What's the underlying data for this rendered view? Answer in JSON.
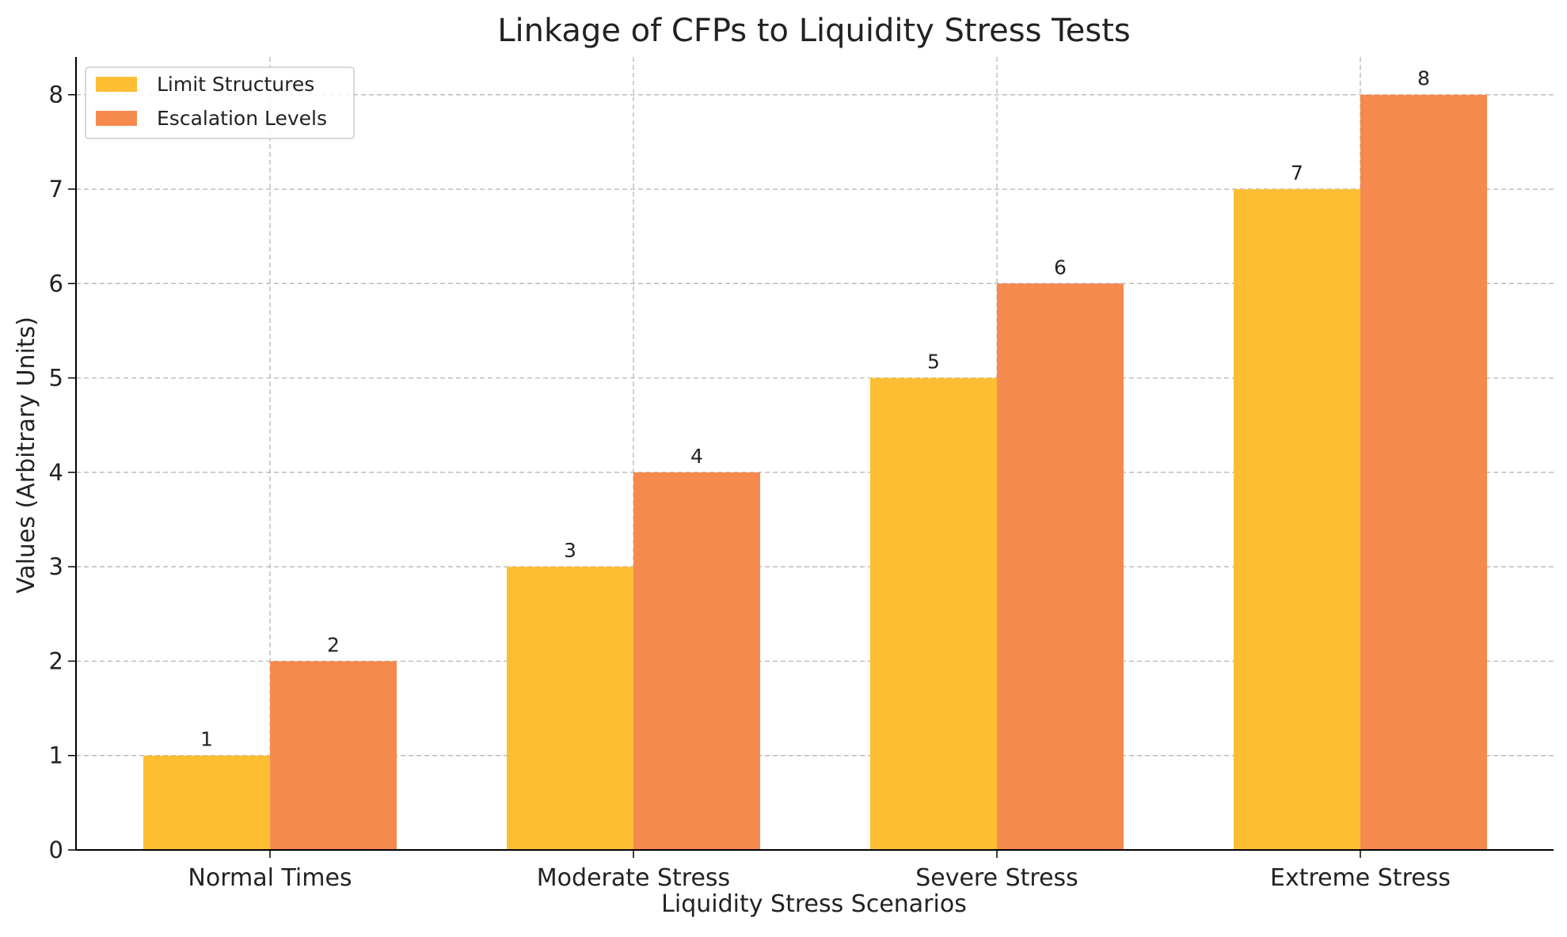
{
  "chart_data": {
    "type": "bar",
    "title": "Linkage of CFPs to Liquidity Stress Tests",
    "xlabel": "Liquidity Stress Scenarios",
    "ylabel": "Values (Arbitrary Units)",
    "categories": [
      "Normal Times",
      "Moderate Stress",
      "Severe Stress",
      "Extreme Stress"
    ],
    "series": [
      {
        "name": "Limit Structures",
        "values": [
          1,
          3,
          5,
          7
        ],
        "color": "#FDBE34"
      },
      {
        "name": "Escalation Levels",
        "values": [
          2,
          4,
          6,
          8
        ],
        "color": "#F68A4E"
      }
    ],
    "ylim": [
      0,
      8.4
    ],
    "yticks": [
      0,
      1,
      2,
      3,
      4,
      5,
      6,
      7,
      8
    ],
    "grid": true,
    "legend_position": "top-left",
    "data_labels": true
  }
}
